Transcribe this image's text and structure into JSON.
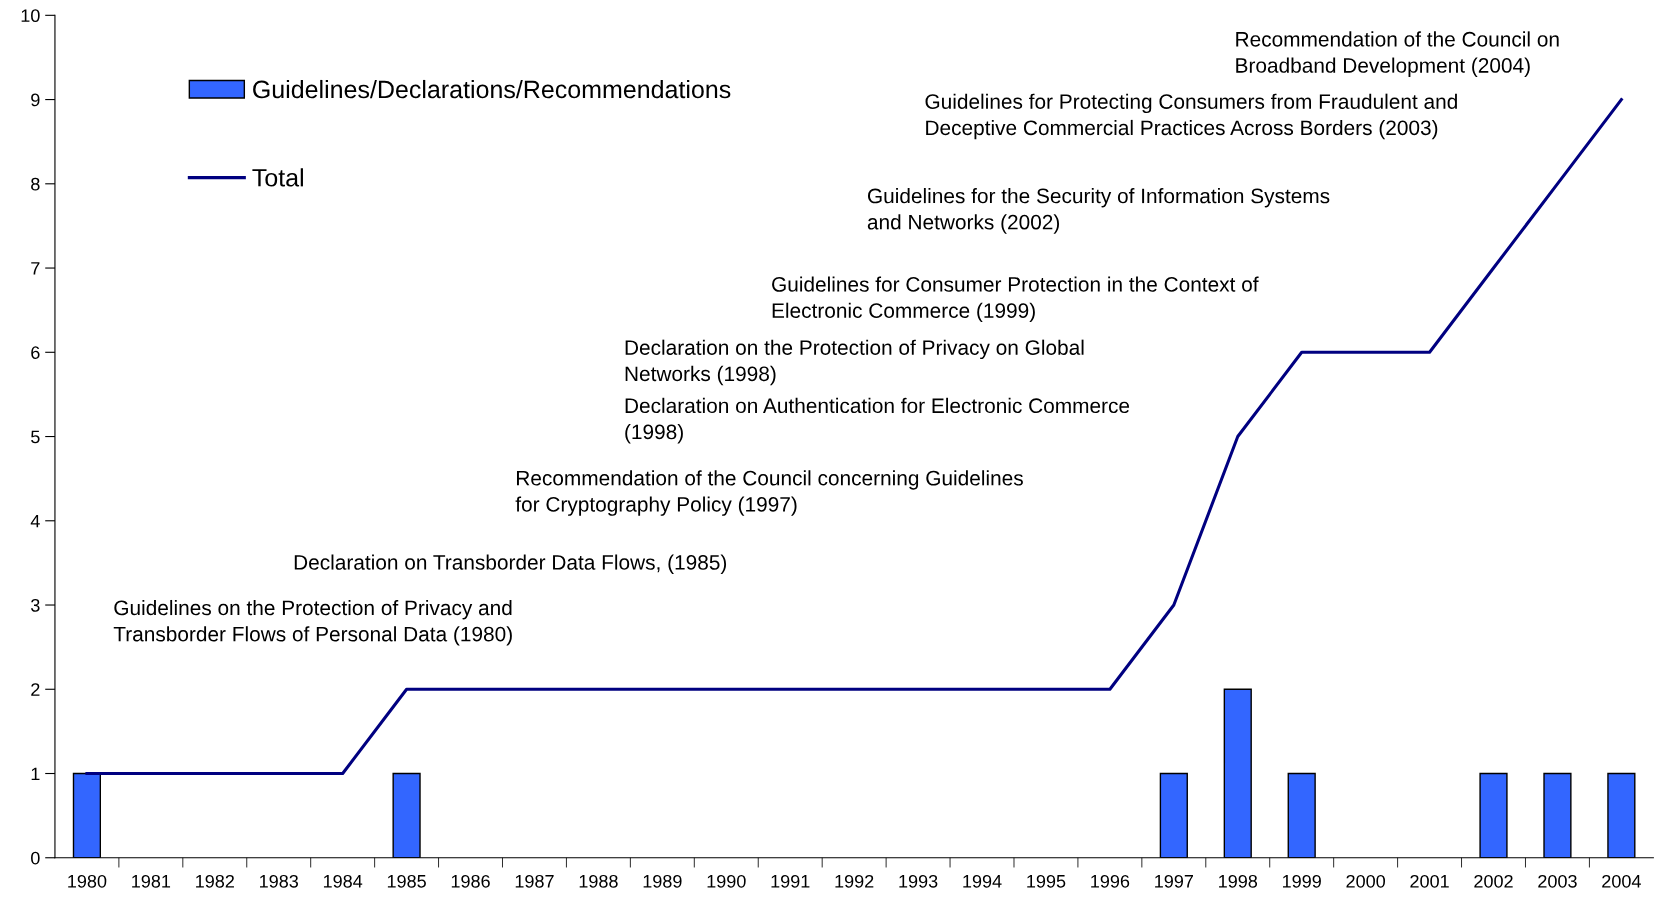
{
  "chart_data": {
    "type": "bar",
    "categories": [
      "1980",
      "1981",
      "1982",
      "1983",
      "1984",
      "1985",
      "1986",
      "1987",
      "1988",
      "1989",
      "1990",
      "1991",
      "1992",
      "1993",
      "1994",
      "1995",
      "1996",
      "1997",
      "1998",
      "1999",
      "2000",
      "2001",
      "2002",
      "2003",
      "2004"
    ],
    "series": [
      {
        "name": "Guidelines/Declarations/Recommendations",
        "color": "#3366ff",
        "values": [
          1,
          0,
          0,
          0,
          0,
          1,
          0,
          0,
          0,
          0,
          0,
          0,
          0,
          0,
          0,
          0,
          0,
          1,
          2,
          1,
          0,
          0,
          1,
          1,
          1
        ]
      },
      {
        "name": "Total",
        "type": "line",
        "color": "#000080",
        "values": [
          1,
          1,
          1,
          1,
          1,
          2,
          2,
          2,
          2,
          2,
          2,
          2,
          2,
          2,
          2,
          2,
          2,
          3,
          5,
          6,
          6,
          6,
          7,
          8,
          9
        ]
      }
    ],
    "ylim": [
      0,
      10
    ],
    "yticks": [
      0,
      1,
      2,
      3,
      4,
      5,
      6,
      7,
      8,
      9,
      10
    ],
    "grid": false,
    "legend": "top left",
    "marker": "none",
    "line_style": "solid",
    "annotations": [
      "Guidelines on the Protection of Privacy and\nTransborder Flows of Personal Data (1980)",
      "Declaration on Transborder Data Flows, (1985)",
      "Recommendation of the Council concerning Guidelines\nfor Cryptography Policy (1997)",
      "Declaration on the Protection of Privacy on Global\nNetworks (1998)",
      "Declaration on Authentication for Electronic Commerce\n(1998)",
      "Guidelines for Consumer Protection in the Context of\nElectronic Commerce (1999)",
      "Guidelines for the Security of Information Systems\nand Networks (2002)",
      "Guidelines for Protecting Consumers from Fraudulent and\nDeceptive Commercial Practices Across Borders (2003)",
      "Recommendation of the Council on\nBroadband Development (2004)"
    ]
  }
}
